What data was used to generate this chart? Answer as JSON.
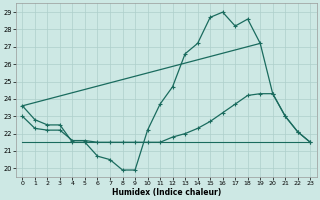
{
  "bg_color": "#cde8e4",
  "grid_color": "#aecfcb",
  "line_color": "#1a6b5e",
  "xlabel": "Humidex (Indice chaleur)",
  "xlim": [
    -0.5,
    23.5
  ],
  "ylim": [
    19.5,
    29.5
  ],
  "xticks": [
    0,
    1,
    2,
    3,
    4,
    5,
    6,
    7,
    8,
    9,
    10,
    11,
    12,
    13,
    14,
    15,
    16,
    17,
    18,
    19,
    20,
    21,
    22,
    23
  ],
  "yticks": [
    20,
    21,
    22,
    23,
    24,
    25,
    26,
    27,
    28,
    29
  ],
  "line1_x": [
    0,
    1,
    2,
    3,
    4,
    5,
    6,
    7,
    8,
    9,
    10,
    11,
    12,
    13,
    14,
    15,
    16,
    17,
    18,
    19,
    20,
    21,
    22,
    23
  ],
  "line1_y": [
    23.6,
    22.8,
    22.5,
    22.5,
    21.5,
    21.5,
    20.7,
    20.5,
    19.9,
    19.9,
    22.2,
    23.7,
    24.7,
    26.6,
    27.2,
    28.7,
    29.0,
    28.2,
    28.6,
    27.2,
    24.3,
    23.0,
    22.1,
    21.5
  ],
  "line2_x": [
    0,
    19
  ],
  "line2_y": [
    23.6,
    27.2
  ],
  "line3_x": [
    0,
    1,
    2,
    3,
    4,
    5,
    6,
    7,
    8,
    9,
    10,
    11,
    12,
    13,
    14,
    15,
    16,
    17,
    18,
    19,
    20,
    21,
    22,
    23
  ],
  "line3_y": [
    23.0,
    22.3,
    22.2,
    22.2,
    21.6,
    21.6,
    21.5,
    21.5,
    21.5,
    21.5,
    21.5,
    21.5,
    21.8,
    22.0,
    22.3,
    22.7,
    23.2,
    23.7,
    24.2,
    24.3,
    24.3,
    23.0,
    22.1,
    21.5
  ],
  "flat_line_x": [
    0,
    23
  ],
  "flat_line_y": [
    21.5,
    21.5
  ]
}
